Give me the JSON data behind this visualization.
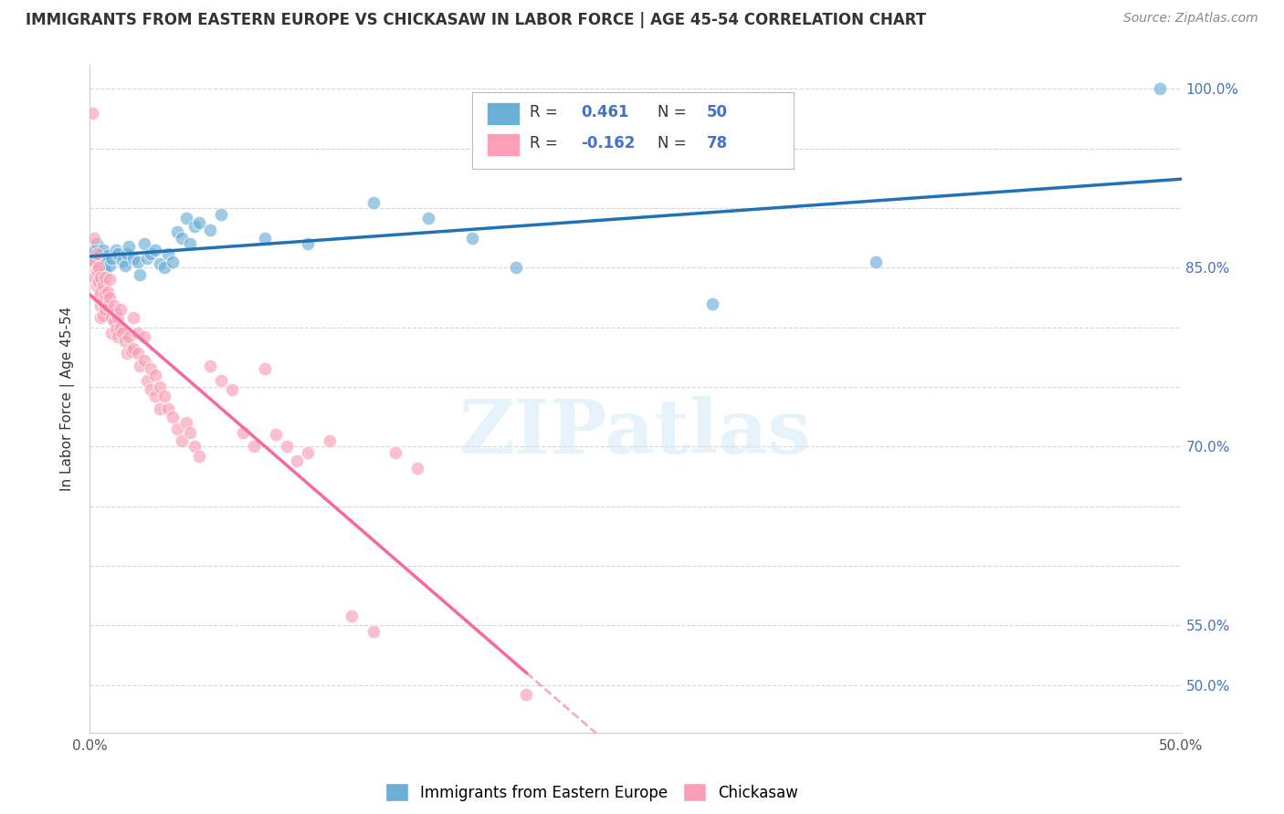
{
  "title": "IMMIGRANTS FROM EASTERN EUROPE VS CHICKASAW IN LABOR FORCE | AGE 45-54 CORRELATION CHART",
  "source": "Source: ZipAtlas.com",
  "ylabel": "In Labor Force | Age 45-54",
  "xlim": [
    0.0,
    0.5
  ],
  "ylim": [
    0.46,
    1.02
  ],
  "right_ytick_labels": [
    "50.0%",
    "55.0%",
    "",
    "",
    "70.0%",
    "",
    "",
    "85.0%",
    "",
    "",
    "100.0%"
  ],
  "legend_blue_label": "Immigrants from Eastern Europe",
  "legend_pink_label": "Chickasaw",
  "r_blue": 0.461,
  "n_blue": 50,
  "r_pink": -0.162,
  "n_pink": 78,
  "blue_color": "#6baed6",
  "pink_color": "#fa9fb5",
  "blue_line_color": "#2171b5",
  "pink_line_color": "#f768a1",
  "watermark": "ZIPatlas",
  "blue_scatter": [
    [
      0.001,
      0.857
    ],
    [
      0.002,
      0.862
    ],
    [
      0.002,
      0.864
    ],
    [
      0.003,
      0.87
    ],
    [
      0.003,
      0.858
    ],
    [
      0.004,
      0.86
    ],
    [
      0.004,
      0.855
    ],
    [
      0.005,
      0.862
    ],
    [
      0.005,
      0.856
    ],
    [
      0.006,
      0.865
    ],
    [
      0.006,
      0.858
    ],
    [
      0.007,
      0.853
    ],
    [
      0.007,
      0.848
    ],
    [
      0.008,
      0.86
    ],
    [
      0.009,
      0.852
    ],
    [
      0.01,
      0.858
    ],
    [
      0.012,
      0.865
    ],
    [
      0.013,
      0.862
    ],
    [
      0.015,
      0.856
    ],
    [
      0.016,
      0.852
    ],
    [
      0.017,
      0.862
    ],
    [
      0.018,
      0.868
    ],
    [
      0.02,
      0.858
    ],
    [
      0.022,
      0.855
    ],
    [
      0.023,
      0.844
    ],
    [
      0.025,
      0.87
    ],
    [
      0.026,
      0.858
    ],
    [
      0.028,
      0.862
    ],
    [
      0.03,
      0.865
    ],
    [
      0.032,
      0.853
    ],
    [
      0.034,
      0.85
    ],
    [
      0.036,
      0.862
    ],
    [
      0.038,
      0.855
    ],
    [
      0.04,
      0.88
    ],
    [
      0.042,
      0.875
    ],
    [
      0.044,
      0.892
    ],
    [
      0.046,
      0.87
    ],
    [
      0.048,
      0.885
    ],
    [
      0.05,
      0.888
    ],
    [
      0.055,
      0.882
    ],
    [
      0.06,
      0.895
    ],
    [
      0.08,
      0.875
    ],
    [
      0.1,
      0.87
    ],
    [
      0.13,
      0.905
    ],
    [
      0.155,
      0.892
    ],
    [
      0.175,
      0.875
    ],
    [
      0.195,
      0.85
    ],
    [
      0.285,
      0.82
    ],
    [
      0.36,
      0.855
    ],
    [
      0.49,
      1.0
    ]
  ],
  "pink_scatter": [
    [
      0.001,
      0.98
    ],
    [
      0.002,
      0.875
    ],
    [
      0.002,
      0.855
    ],
    [
      0.002,
      0.842
    ],
    [
      0.003,
      0.862
    ],
    [
      0.003,
      0.848
    ],
    [
      0.003,
      0.835
    ],
    [
      0.004,
      0.85
    ],
    [
      0.004,
      0.838
    ],
    [
      0.004,
      0.825
    ],
    [
      0.005,
      0.842
    ],
    [
      0.005,
      0.83
    ],
    [
      0.005,
      0.818
    ],
    [
      0.005,
      0.808
    ],
    [
      0.006,
      0.835
    ],
    [
      0.006,
      0.822
    ],
    [
      0.006,
      0.81
    ],
    [
      0.007,
      0.842
    ],
    [
      0.007,
      0.828
    ],
    [
      0.007,
      0.815
    ],
    [
      0.008,
      0.83
    ],
    [
      0.008,
      0.818
    ],
    [
      0.009,
      0.84
    ],
    [
      0.009,
      0.825
    ],
    [
      0.01,
      0.808
    ],
    [
      0.01,
      0.795
    ],
    [
      0.011,
      0.818
    ],
    [
      0.011,
      0.805
    ],
    [
      0.012,
      0.812
    ],
    [
      0.012,
      0.798
    ],
    [
      0.013,
      0.808
    ],
    [
      0.013,
      0.792
    ],
    [
      0.014,
      0.815
    ],
    [
      0.014,
      0.8
    ],
    [
      0.015,
      0.795
    ],
    [
      0.016,
      0.788
    ],
    [
      0.017,
      0.778
    ],
    [
      0.018,
      0.792
    ],
    [
      0.019,
      0.78
    ],
    [
      0.02,
      0.808
    ],
    [
      0.02,
      0.782
    ],
    [
      0.022,
      0.795
    ],
    [
      0.022,
      0.778
    ],
    [
      0.023,
      0.768
    ],
    [
      0.025,
      0.792
    ],
    [
      0.025,
      0.772
    ],
    [
      0.026,
      0.755
    ],
    [
      0.028,
      0.765
    ],
    [
      0.028,
      0.748
    ],
    [
      0.03,
      0.76
    ],
    [
      0.03,
      0.742
    ],
    [
      0.032,
      0.75
    ],
    [
      0.032,
      0.732
    ],
    [
      0.034,
      0.742
    ],
    [
      0.036,
      0.732
    ],
    [
      0.038,
      0.725
    ],
    [
      0.04,
      0.715
    ],
    [
      0.042,
      0.705
    ],
    [
      0.044,
      0.72
    ],
    [
      0.046,
      0.712
    ],
    [
      0.048,
      0.7
    ],
    [
      0.05,
      0.692
    ],
    [
      0.055,
      0.768
    ],
    [
      0.06,
      0.755
    ],
    [
      0.065,
      0.748
    ],
    [
      0.07,
      0.712
    ],
    [
      0.075,
      0.7
    ],
    [
      0.08,
      0.765
    ],
    [
      0.085,
      0.71
    ],
    [
      0.09,
      0.7
    ],
    [
      0.095,
      0.688
    ],
    [
      0.1,
      0.695
    ],
    [
      0.11,
      0.705
    ],
    [
      0.12,
      0.558
    ],
    [
      0.13,
      0.545
    ],
    [
      0.14,
      0.695
    ],
    [
      0.15,
      0.682
    ],
    [
      0.2,
      0.492
    ]
  ]
}
